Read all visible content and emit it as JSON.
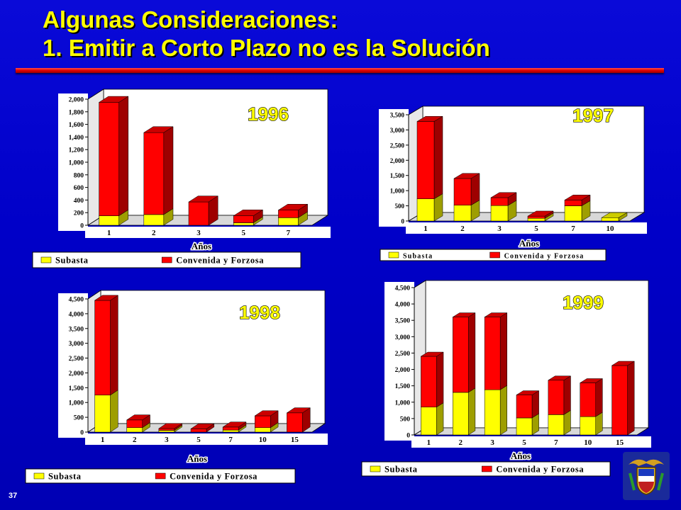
{
  "title": {
    "line1": "Algunas Consideraciones:",
    "line2": "1. Emitir a Corto Plazo no es la Solución"
  },
  "page_number": "37",
  "colors": {
    "background": "#0000c8",
    "title": "#ffff00",
    "subasta": "#ffff00",
    "convenida": "#ff0000",
    "rule": "#e00000"
  },
  "chart_data": [
    {
      "type": "bar",
      "stacked": true,
      "title": "1996",
      "xlabel": "Años",
      "categories": [
        "1",
        "2",
        "3",
        "5",
        "7"
      ],
      "ylim": [
        0,
        2000
      ],
      "yticks": [
        0,
        200,
        400,
        600,
        800,
        1000,
        1200,
        1400,
        1600,
        1800,
        2000
      ],
      "ytick_labels": [
        "0",
        "200",
        "400",
        "600",
        "800",
        "1,000",
        "1,200",
        "1,400",
        "1,600",
        "1,800",
        "2,000"
      ],
      "series": [
        {
          "name": "Subasta",
          "values": [
            150,
            170,
            0,
            40,
            120
          ]
        },
        {
          "name": "Convenida y Forzosa",
          "values": [
            1800,
            1300,
            370,
            110,
            120
          ]
        }
      ],
      "legend": "bottom"
    },
    {
      "type": "bar",
      "stacked": true,
      "title": "1997",
      "xlabel": "Años",
      "categories": [
        "1",
        "2",
        "3",
        "5",
        "7",
        "10"
      ],
      "ylim": [
        0,
        3500
      ],
      "yticks": [
        0,
        500,
        1000,
        1500,
        2000,
        2500,
        3000,
        3500
      ],
      "ytick_labels": [
        "0",
        "500",
        "1,000",
        "1,500",
        "2,000",
        "2,500",
        "3,000",
        "3,500"
      ],
      "series": [
        {
          "name": "Subasta",
          "values": [
            730,
            520,
            510,
            90,
            500,
            110
          ]
        },
        {
          "name": "Convenida y Forzosa",
          "values": [
            2550,
            880,
            260,
            70,
            190,
            0
          ]
        }
      ],
      "legend": "bottom"
    },
    {
      "type": "bar",
      "stacked": true,
      "title": "1998",
      "xlabel": "Años",
      "categories": [
        "1",
        "2",
        "3",
        "5",
        "7",
        "10",
        "15"
      ],
      "ylim": [
        0,
        4500
      ],
      "yticks": [
        0,
        500,
        1000,
        1500,
        2000,
        2500,
        3000,
        3500,
        4000,
        4500
      ],
      "ytick_labels": [
        "0",
        "500",
        "1,000",
        "1,500",
        "2,000",
        "2,500",
        "3,000",
        "3,500",
        "4,000",
        "4,500"
      ],
      "series": [
        {
          "name": "Subasta",
          "values": [
            1250,
            150,
            60,
            0,
            70,
            150,
            0
          ]
        },
        {
          "name": "Convenida y Forzosa",
          "values": [
            3200,
            260,
            60,
            110,
            100,
            400,
            650
          ]
        }
      ],
      "legend": "bottom"
    },
    {
      "type": "bar",
      "stacked": true,
      "title": "1999",
      "xlabel": "Años",
      "categories": [
        "1",
        "2",
        "3",
        "5",
        "7",
        "10",
        "15"
      ],
      "ylim": [
        0,
        4500
      ],
      "yticks": [
        0,
        500,
        1000,
        1500,
        2000,
        2500,
        3000,
        3500,
        4000,
        4500
      ],
      "ytick_labels": [
        "0",
        "500",
        "1,000",
        "1,500",
        "2,000",
        "2,500",
        "3,000",
        "3,500",
        "4,000",
        "4,500"
      ],
      "series": [
        {
          "name": "Subasta",
          "values": [
            850,
            1300,
            1380,
            520,
            620,
            560,
            0
          ]
        },
        {
          "name": "Convenida y Forzosa",
          "values": [
            1550,
            2300,
            2220,
            700,
            1050,
            1030,
            2120
          ]
        }
      ],
      "legend": "bottom"
    }
  ]
}
